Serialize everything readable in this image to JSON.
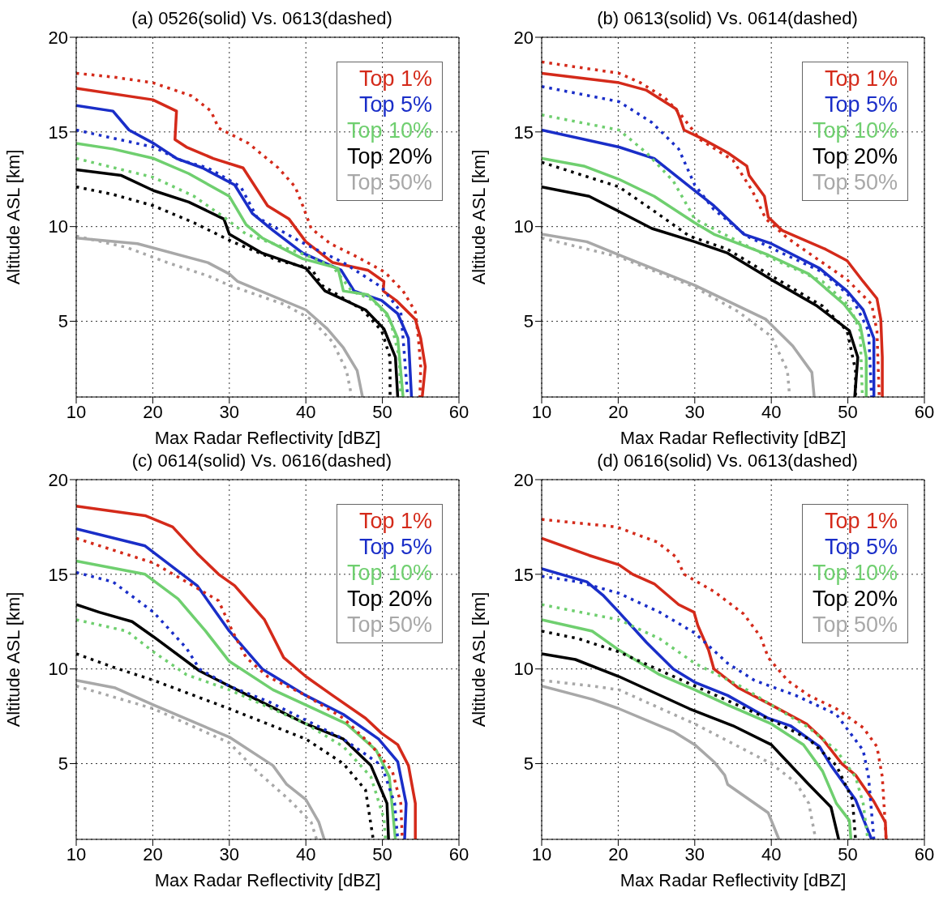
{
  "chart_data": [
    {
      "type": "line",
      "title": "(a) 0526(solid) Vs. 0613(dashed)",
      "xlabel": "Max Radar Reflectivity [dBZ]",
      "ylabel": "Altitude ASL [km]",
      "xlim": [
        10,
        60
      ],
      "xticks": [
        10,
        20,
        30,
        40,
        50,
        60
      ],
      "ylim": [
        1,
        20
      ],
      "yticks": [
        5,
        10,
        15,
        20
      ],
      "grid": true,
      "legend": "top right",
      "series": [
        {
          "name": "Top 1%",
          "color": "#d42a1a",
          "line_style": "solid",
          "x": [
            10,
            20,
            23.1,
            22.9,
            24.4,
            27.9,
            31.8,
            35,
            37.8,
            40,
            43.5,
            48.1,
            50.2,
            50.1,
            51.8,
            54.3,
            55,
            55.6,
            55.2
          ],
          "values": [
            17.3,
            16.7,
            16.1,
            14.6,
            14.2,
            13.6,
            13.1,
            11.1,
            10.4,
            9.2,
            8.1,
            7.7,
            7.1,
            6.6,
            6.1,
            5.1,
            4.1,
            2.6,
            1
          ]
        },
        {
          "name": "Top 5%",
          "color": "#1a2ec8",
          "line_style": "solid",
          "x": [
            10,
            14.8,
            16.9,
            20.1,
            23.1,
            26.5,
            30.7,
            33,
            35.7,
            39.6,
            44.6,
            46.3,
            49.9,
            52,
            53.4,
            53.8
          ],
          "values": [
            16.4,
            16.1,
            15.1,
            14.4,
            13.6,
            13.1,
            12.2,
            10.7,
            9.8,
            8.6,
            7.7,
            6.6,
            6.1,
            5.4,
            4.1,
            1
          ]
        },
        {
          "name": "Top 10%",
          "color": "#6fcf6f",
          "line_style": "solid",
          "x": [
            10,
            14.8,
            20.1,
            24.7,
            30,
            32.2,
            34.3,
            39.6,
            44.2,
            44.9,
            48.1,
            50.6,
            52,
            52.7
          ],
          "values": [
            14.4,
            14.1,
            13.6,
            12.8,
            11.6,
            10.1,
            9.4,
            8.3,
            7.8,
            6.6,
            6.4,
            5.4,
            4.1,
            1
          ]
        },
        {
          "name": "Top 20%",
          "color": "#000000",
          "line_style": "solid",
          "x": [
            10,
            15.9,
            20.1,
            24.7,
            29.3,
            30,
            34.3,
            40,
            42.5,
            47.8,
            50.2,
            51.7,
            52
          ],
          "values": [
            13,
            12.7,
            11.9,
            11.3,
            10.4,
            9.6,
            8.6,
            7.8,
            6.6,
            5.6,
            4.6,
            3.1,
            1
          ]
        },
        {
          "name": "Top 50%",
          "color": "#a8a8a8",
          "line_style": "solid",
          "x": [
            10,
            18,
            27.2,
            30,
            31.1,
            40,
            42.8,
            44.9,
            46.7,
            47.4
          ],
          "values": [
            9.4,
            9.1,
            8.1,
            7.5,
            7.1,
            5.6,
            4.6,
            3.6,
            2.4,
            1
          ]
        },
        {
          "color": "#d42a1a",
          "line_style": "dotted",
          "x": [
            10,
            14.8,
            20,
            25.1,
            27.6,
            28.6,
            32.5,
            36.4,
            38.6,
            39.6,
            40.7,
            43.2,
            46.7,
            50.3,
            52.7,
            54.3,
            54.7,
            55,
            54.9
          ],
          "values": [
            18.1,
            17.9,
            17.6,
            16.9,
            16.1,
            15.2,
            14.4,
            13.1,
            12.1,
            11.1,
            9.9,
            9.1,
            8.4,
            7.6,
            6.6,
            5.5,
            4.1,
            2.6,
            1
          ]
        },
        {
          "color": "#1a2ec8",
          "line_style": "dotted",
          "x": [
            10,
            20.1,
            23.7,
            27.2,
            31.5,
            33.6,
            39.3,
            44.9,
            49.9,
            52.4,
            52.7,
            53.3
          ],
          "values": [
            15.1,
            14.2,
            13.5,
            13.1,
            12.1,
            10.5,
            9.2,
            8.1,
            6.8,
            5.5,
            4.1,
            1
          ]
        },
        {
          "color": "#6fcf6f",
          "line_style": "dotted",
          "x": [
            10,
            20.1,
            25.4,
            29.3,
            32.2,
            39.3,
            43.5,
            46,
            48.8,
            51,
            52.2,
            52.4
          ],
          "values": [
            13.6,
            12.6,
            11.6,
            10.5,
            9.6,
            8.6,
            7.9,
            6.6,
            6.1,
            5.1,
            3.1,
            1
          ]
        },
        {
          "color": "#000000",
          "line_style": "dotted",
          "x": [
            10,
            14.8,
            20.1,
            25.4,
            30.4,
            36.4,
            40.7,
            42.1,
            47.4,
            49.9,
            51,
            51
          ],
          "values": [
            12.1,
            11.7,
            11.1,
            10.2,
            9.2,
            8.2,
            7.8,
            6.9,
            5.6,
            4.5,
            3.1,
            1
          ]
        },
        {
          "color": "#a8a8a8",
          "line_style": "dotted",
          "x": [
            10,
            16.6,
            21.9,
            27.2,
            30,
            37.1,
            40.7,
            43.5,
            45.3,
            46
          ],
          "values": [
            9.5,
            8.9,
            8.1,
            7.4,
            6.9,
            5.9,
            5.1,
            3.9,
            2.4,
            1
          ]
        }
      ]
    },
    {
      "type": "line",
      "title": "(b) 0613(solid) Vs. 0614(dashed)",
      "xlabel": "Max Radar Reflectivity [dBZ]",
      "ylabel": "Altitude ASL [km]",
      "xlim": [
        10,
        60
      ],
      "xticks": [
        10,
        20,
        30,
        40,
        50,
        60
      ],
      "ylim": [
        1,
        20
      ],
      "yticks": [
        5,
        10,
        15,
        20
      ],
      "grid": true,
      "legend": "top right",
      "series": [
        {
          "name": "Top 1%",
          "color": "#d42a1a",
          "line_style": "solid",
          "x": [
            10,
            20.1,
            23.7,
            27.6,
            28,
            28.6,
            30.7,
            34.3,
            36.8,
            37.1,
            39.1,
            39.6,
            41.4,
            47.1,
            49.9,
            52,
            53.8,
            54.3,
            54.5,
            54.5
          ],
          "values": [
            18.1,
            17.6,
            17.2,
            16.2,
            15.8,
            15.1,
            14.7,
            13.9,
            13.2,
            12.7,
            11.6,
            10.5,
            9.8,
            8.8,
            8.2,
            7.1,
            6.2,
            5.1,
            3.1,
            1
          ]
        },
        {
          "name": "Top 5%",
          "color": "#1a2ec8",
          "line_style": "solid",
          "x": [
            10,
            20.1,
            24.7,
            30,
            32.5,
            36.4,
            40,
            46.3,
            49.9,
            52,
            53.4,
            53.4
          ],
          "values": [
            15.1,
            14.2,
            13.6,
            11.9,
            11.1,
            9.6,
            9.1,
            7.8,
            6.6,
            5.6,
            4.1,
            1
          ]
        },
        {
          "name": "Top 10%",
          "color": "#6fcf6f",
          "line_style": "solid",
          "x": [
            10,
            15.5,
            20.1,
            24.7,
            30,
            32.5,
            39.6,
            44.9,
            49.5,
            51.6,
            52.4,
            52.4
          ],
          "values": [
            13.6,
            13.2,
            12.5,
            11.6,
            10.2,
            9.6,
            8.5,
            7.5,
            5.9,
            4.8,
            3.1,
            1
          ]
        },
        {
          "name": "Top 20%",
          "color": "#000000",
          "line_style": "solid",
          "x": [
            10,
            16.2,
            20.1,
            24.4,
            30,
            34.3,
            40,
            46,
            50.2,
            51.3,
            50.9
          ],
          "values": [
            12.1,
            11.6,
            10.8,
            9.9,
            9.2,
            8.6,
            7.2,
            5.8,
            4.5,
            3.1,
            1
          ]
        },
        {
          "name": "Top 50%",
          "color": "#a8a8a8",
          "line_style": "solid",
          "x": [
            10,
            15.9,
            20.1,
            30,
            39.3,
            42.8,
            45.3,
            45.6
          ],
          "values": [
            9.6,
            9.2,
            8.5,
            6.9,
            5.1,
            3.7,
            2.3,
            1
          ]
        },
        {
          "color": "#d42a1a",
          "line_style": "dotted",
          "x": [
            10,
            20.1,
            22.9,
            26.1,
            28.2,
            30.7,
            35,
            37.5,
            39.3,
            42.1,
            44.9,
            49.9,
            53.1,
            53.8,
            54.1
          ],
          "values": [
            18.7,
            18.1,
            17.6,
            16.8,
            15.9,
            14.6,
            13.5,
            11.9,
            10.4,
            9.4,
            8.6,
            7.2,
            5.9,
            4.5,
            1
          ]
        },
        {
          "color": "#1a2ec8",
          "line_style": "dotted",
          "x": [
            10,
            20.1,
            24.4,
            27.9,
            30,
            32.5,
            36.8,
            41.4,
            46.7,
            50.6,
            52.7,
            53.1
          ],
          "values": [
            17.4,
            16.6,
            15.5,
            14.1,
            12.2,
            10.9,
            9.5,
            8.6,
            7.6,
            6.2,
            4.5,
            1
          ]
        },
        {
          "color": "#6fcf6f",
          "line_style": "dotted",
          "x": [
            10,
            20.1,
            23.7,
            27.2,
            30,
            34.3,
            40.7,
            46.7,
            50.2,
            51.6,
            51.9
          ],
          "values": [
            15.9,
            15.1,
            13.9,
            12.4,
            10.4,
            9.5,
            8.2,
            7.1,
            5.8,
            4.5,
            1
          ]
        },
        {
          "color": "#000000",
          "line_style": "dotted",
          "x": [
            10,
            20.1,
            24.4,
            29.3,
            34.3,
            40,
            46.7,
            49.9,
            51,
            51
          ],
          "values": [
            13.4,
            12.1,
            10.9,
            9.5,
            8.8,
            7.4,
            5.8,
            4.5,
            2.4,
            1
          ]
        },
        {
          "color": "#a8a8a8",
          "line_style": "dotted",
          "x": [
            10,
            20.1,
            30,
            35.7,
            40,
            42.1,
            42.4
          ],
          "values": [
            9.4,
            8.4,
            6.8,
            5.5,
            4.2,
            2.4,
            1
          ]
        }
      ]
    },
    {
      "type": "line",
      "title": "(c) 0614(solid) Vs. 0616(dashed)",
      "xlabel": "Max Radar Reflectivity [dBZ]",
      "ylabel": "Altitude ASL [km]",
      "xlim": [
        10,
        60
      ],
      "xticks": [
        10,
        20,
        30,
        40,
        50,
        60
      ],
      "ylim": [
        1,
        20
      ],
      "yticks": [
        5,
        10,
        15,
        20
      ],
      "grid": true,
      "legend": "top right",
      "series": [
        {
          "name": "Top 1%",
          "color": "#d42a1a",
          "line_style": "solid",
          "x": [
            10,
            19,
            22.6,
            25.8,
            28.6,
            30.7,
            34.6,
            37.1,
            40,
            43.5,
            47.8,
            49.9,
            52,
            53.4,
            54.3,
            54.3
          ],
          "values": [
            18.6,
            18.1,
            17.5,
            16.1,
            15,
            14.4,
            12.6,
            10.6,
            9.6,
            8.6,
            7.4,
            6.6,
            6,
            4.9,
            2.9,
            1
          ]
        },
        {
          "name": "Top 5%",
          "color": "#1a2ec8",
          "line_style": "solid",
          "x": [
            10,
            19,
            25.8,
            30,
            34.3,
            40,
            44.9,
            49.5,
            52,
            53.1,
            52.9
          ],
          "values": [
            17.4,
            16.5,
            14.4,
            12,
            10,
            8.6,
            7.6,
            6.3,
            5.1,
            2.9,
            1
          ]
        },
        {
          "name": "Top 10%",
          "color": "#6fcf6f",
          "line_style": "solid",
          "x": [
            10,
            19,
            23.3,
            26.9,
            30,
            35.7,
            40,
            45.3,
            49.2,
            50.9,
            51.7
          ],
          "values": [
            15.7,
            15,
            13.7,
            12,
            10.4,
            8.9,
            8.1,
            7.1,
            5.7,
            4.3,
            1
          ]
        },
        {
          "name": "Top 20%",
          "color": "#000000",
          "line_style": "solid",
          "x": [
            10,
            13,
            17.3,
            20.1,
            26.1,
            30,
            35,
            40,
            44.9,
            48.5,
            50.6,
            50.8
          ],
          "values": [
            13.4,
            13,
            12.5,
            11.7,
            9.9,
            9.1,
            8.1,
            7.1,
            6.3,
            4.9,
            2.9,
            1
          ]
        },
        {
          "name": "Top 50%",
          "color": "#a8a8a8",
          "line_style": "solid",
          "x": [
            10,
            15.1,
            20.1,
            30,
            35.7,
            37.5,
            40,
            41.7,
            42.4
          ],
          "values": [
            9.4,
            9,
            8.1,
            6.4,
            4.9,
            3.9,
            3.1,
            1.9,
            1
          ]
        },
        {
          "color": "#d42a1a",
          "line_style": "dotted",
          "x": [
            10,
            20.1,
            24.4,
            28.6,
            30.4,
            32.2,
            35,
            40,
            44.9,
            48.5,
            51.3,
            52.4,
            52.6
          ],
          "values": [
            16.9,
            15.6,
            14.6,
            13.6,
            12,
            10.6,
            9.6,
            8.6,
            7.4,
            6,
            4.6,
            2.9,
            1
          ]
        },
        {
          "color": "#1a2ec8",
          "line_style": "dotted",
          "x": [
            10,
            14.8,
            20.1,
            24.4,
            26.1,
            30,
            35,
            40,
            44.9,
            49.9,
            51.6,
            52
          ],
          "values": [
            15.1,
            14.6,
            13,
            11.1,
            10,
            9.1,
            8.3,
            7.3,
            6.3,
            4.9,
            2.9,
            1
          ]
        },
        {
          "color": "#6fcf6f",
          "line_style": "dotted",
          "x": [
            10,
            16.6,
            20.1,
            24.4,
            30,
            40,
            44.9,
            48.5,
            50.2,
            50.4
          ],
          "values": [
            12.6,
            12,
            10.9,
            9.7,
            8.9,
            7.1,
            5.9,
            4.3,
            2.1,
            1
          ]
        },
        {
          "color": "#000000",
          "line_style": "dotted",
          "x": [
            10,
            14.8,
            20.1,
            30,
            40,
            44.9,
            47.8,
            48.8
          ],
          "values": [
            10.8,
            10.1,
            9.4,
            7.9,
            6.3,
            5,
            3.6,
            1
          ]
        },
        {
          "color": "#a8a8a8",
          "line_style": "dotted",
          "x": [
            10,
            20.1,
            30,
            33.6,
            37.8,
            40.7,
            41.4
          ],
          "values": [
            9.1,
            7.9,
            6.1,
            4.6,
            3.1,
            1.9,
            1
          ]
        }
      ]
    },
    {
      "type": "line",
      "title": "(d) 0616(solid) Vs. 0613(dashed)",
      "xlabel": "Max Radar Reflectivity [dBZ]",
      "ylabel": "Altitude ASL [km]",
      "xlim": [
        10,
        60
      ],
      "xticks": [
        10,
        20,
        30,
        40,
        50,
        60
      ],
      "ylim": [
        1,
        20
      ],
      "yticks": [
        5,
        10,
        15,
        20
      ],
      "grid": true,
      "legend": "top right",
      "series": [
        {
          "name": "Top 1%",
          "color": "#d42a1a",
          "line_style": "solid",
          "x": [
            10,
            16.2,
            20.1,
            21.9,
            24.7,
            27.9,
            29.9,
            30.4,
            31.8,
            32.5,
            35.7,
            40,
            44.6,
            46.7,
            49.2,
            51,
            53.4,
            54.9,
            55
          ],
          "values": [
            16.9,
            16,
            15.5,
            15,
            14.5,
            13.4,
            13,
            12.3,
            11,
            10,
            9,
            8.1,
            7.1,
            6.3,
            5,
            4.4,
            3,
            1.9,
            1
          ]
        },
        {
          "name": "Top 5%",
          "color": "#1a2ec8",
          "line_style": "solid",
          "x": [
            10,
            15.9,
            18,
            20.1,
            23.7,
            27.2,
            30,
            34.3,
            39.6,
            42.5,
            46.3,
            47.8,
            51,
            53.1
          ],
          "values": [
            15.3,
            14.6,
            13.9,
            13,
            11.4,
            10,
            9.3,
            8.6,
            7.4,
            7,
            5.9,
            4.9,
            3.1,
            1
          ]
        },
        {
          "name": "Top 10%",
          "color": "#6fcf6f",
          "line_style": "solid",
          "x": [
            10,
            16.6,
            20.1,
            25.4,
            30,
            34.3,
            40,
            44.2,
            46.7,
            48.5,
            50.2,
            50.4
          ],
          "values": [
            12.6,
            12,
            11,
            9.7,
            8.9,
            8.1,
            7.1,
            6,
            4.6,
            2.9,
            2,
            1
          ]
        },
        {
          "name": "Top 20%",
          "color": "#000000",
          "line_style": "solid",
          "x": [
            10,
            14.4,
            20.1,
            29.3,
            35,
            40,
            41.4,
            44.9,
            47.8,
            48.8
          ],
          "values": [
            10.8,
            10.5,
            9.6,
            7.9,
            7,
            6,
            5.4,
            3.9,
            2.7,
            1
          ]
        },
        {
          "name": "Top 50%",
          "color": "#a8a8a8",
          "line_style": "solid",
          "x": [
            10,
            16.6,
            20.1,
            27.2,
            30,
            32.5,
            33.9,
            34.3,
            39.6,
            41
          ],
          "values": [
            9.1,
            8.4,
            7.9,
            6.7,
            6,
            5.1,
            4.4,
            3.9,
            2.4,
            1
          ]
        },
        {
          "color": "#d42a1a",
          "line_style": "dotted",
          "x": [
            10,
            19.8,
            25.1,
            27.6,
            28.6,
            32.5,
            36.4,
            38.6,
            39.6,
            42.1,
            44.9,
            48.5,
            52,
            53.8,
            54.5,
            55
          ],
          "values": [
            17.9,
            17.5,
            16.7,
            15.9,
            15,
            14.1,
            12.9,
            11.7,
            10.6,
            9.4,
            8.6,
            7.9,
            6.9,
            5.9,
            4.3,
            1
          ]
        },
        {
          "color": "#1a2ec8",
          "line_style": "dotted",
          "x": [
            10,
            14.8,
            20.1,
            25.4,
            30,
            34.3,
            37.8,
            43.2,
            48.5,
            52,
            52.7,
            53.4
          ],
          "values": [
            14.9,
            14.6,
            14,
            13,
            11.9,
            10.3,
            9.4,
            8.6,
            7.6,
            5.7,
            4.3,
            1
          ]
        },
        {
          "color": "#6fcf6f",
          "line_style": "dotted",
          "x": [
            10,
            20.1,
            25.4,
            30,
            36.4,
            40,
            44.9,
            48.5,
            51,
            52,
            52.6
          ],
          "values": [
            13.4,
            12.6,
            11.6,
            10.3,
            9,
            8.1,
            6.9,
            5.7,
            4.3,
            2.9,
            1
          ]
        },
        {
          "color": "#000000",
          "line_style": "dotted",
          "x": [
            10,
            14.8,
            20.1,
            30,
            40,
            44.9,
            48.5,
            50.6,
            51
          ],
          "values": [
            12,
            11.6,
            10.9,
            9.1,
            7.3,
            6.3,
            4.9,
            3.1,
            1
          ]
        },
        {
          "color": "#a8a8a8",
          "line_style": "dotted",
          "x": [
            10,
            16.6,
            20.1,
            30,
            40,
            43.2,
            44.9,
            45.8
          ],
          "values": [
            9.4,
            9.1,
            8.9,
            7.1,
            5,
            4,
            2.9,
            1
          ]
        }
      ]
    }
  ]
}
